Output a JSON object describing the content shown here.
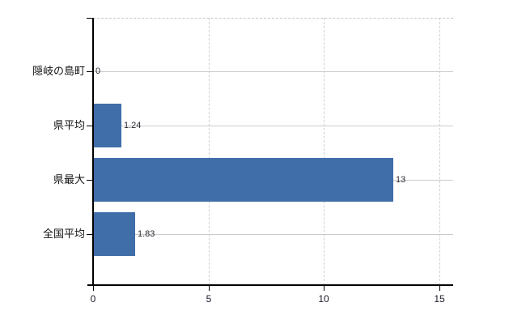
{
  "chart_data": {
    "type": "bar",
    "orientation": "horizontal",
    "title": "",
    "xlabel": "",
    "ylabel": "",
    "categories": [
      "隠岐の島町",
      "県平均",
      "県最大",
      "全国平均"
    ],
    "values": [
      0,
      1.24,
      13,
      1.83
    ],
    "value_labels": [
      "0",
      "1.24",
      "13",
      "1.83"
    ],
    "x_ticks": [
      0,
      5,
      10,
      15
    ],
    "x_tick_labels": [
      "0",
      "5",
      "10",
      "15"
    ],
    "xlim": [
      0,
      15.6
    ],
    "grid": true,
    "legend": false,
    "colors": {
      "bar": "#3f6ea9",
      "axis": "#000000",
      "gridline_vertical": "#cfcfcf",
      "gridline_horizontal": "#cccccc",
      "text": "#111111",
      "value_text": "#2a2a35",
      "background": "#ffffff"
    }
  }
}
